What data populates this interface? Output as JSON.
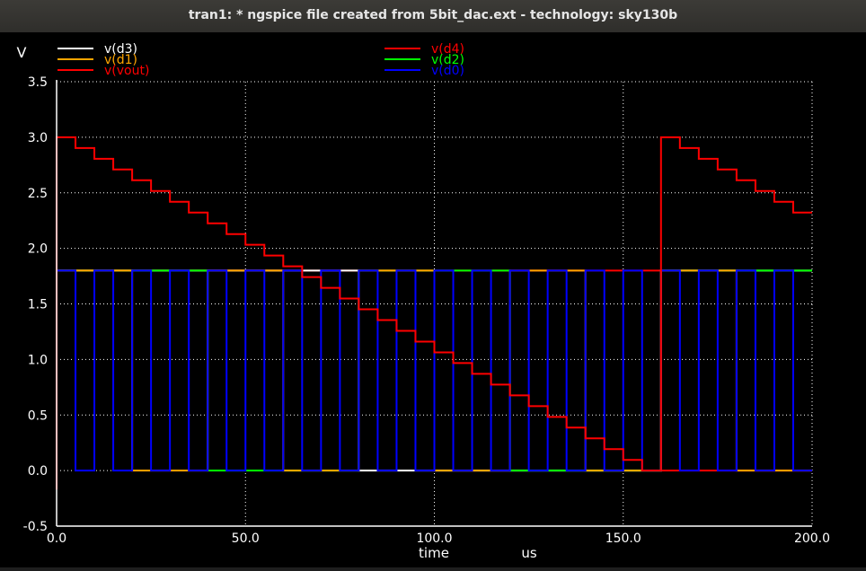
{
  "window": {
    "title": "tran1: * ngspice file created from 5bit_dac.ext - technology: sky130b"
  },
  "chart_data": {
    "type": "line",
    "ylabel": "V",
    "xlabel": "time",
    "xunit": "us",
    "xlim": [
      0,
      200
    ],
    "ylim": [
      -0.5,
      3.5
    ],
    "xticks": [
      0,
      50,
      100,
      150,
      200
    ],
    "xtick_labels": [
      "0.0",
      "50.0",
      "100.0",
      "150.0",
      "200.0"
    ],
    "yticks": [
      -0.5,
      0,
      0.5,
      1,
      1.5,
      2,
      2.5,
      3,
      3.5
    ],
    "ytick_labels": [
      "-0.5",
      "0.0",
      "0.5",
      "1.0",
      "1.5",
      "2.0",
      "2.5",
      "3.0",
      "3.5"
    ],
    "grid": true,
    "legend_position": "top",
    "colors": {
      "background": "#000000",
      "axis": "#ffffff",
      "grid": "#ffffff",
      "title_bar": "#3c3b37"
    },
    "series": [
      {
        "name": "v(d3)",
        "color": "#ffffff",
        "kind": "square",
        "period": 160,
        "high": 1.8,
        "low": 0,
        "starts_high": true
      },
      {
        "name": "v(d4)",
        "color": "#ff0000",
        "kind": "square",
        "period": 320,
        "high": 1.8,
        "low": 0,
        "starts_high": true
      },
      {
        "name": "v(d1)",
        "color": "#ffa500",
        "kind": "square",
        "period": 40,
        "high": 1.8,
        "low": 0,
        "starts_high": true
      },
      {
        "name": "v(d2)",
        "color": "#00ff00",
        "kind": "square",
        "period": 80,
        "high": 1.8,
        "low": 0,
        "starts_high": true
      },
      {
        "name": "v(vout)",
        "color": "#ff0000",
        "kind": "staircase",
        "period": 160,
        "step_width": 5,
        "v_max": 3.0,
        "v_step": 0.0968
      },
      {
        "name": "v(d0)",
        "color": "#0000ff",
        "kind": "square",
        "period": 10,
        "high": 1.8,
        "low": 0,
        "starts_high": true
      }
    ]
  }
}
